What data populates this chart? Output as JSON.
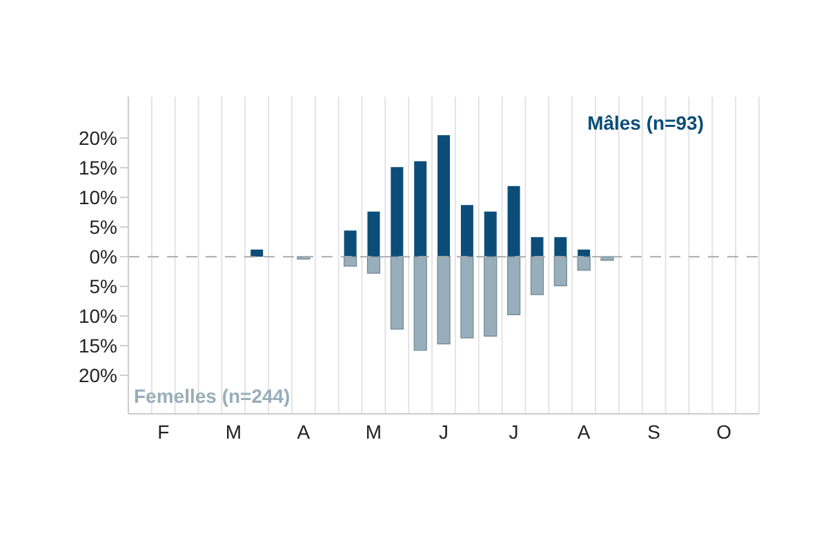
{
  "chart_data": {
    "type": "bar",
    "stacked": true,
    "categories": [
      null,
      "F",
      null,
      null,
      "M",
      null,
      null,
      "A",
      null,
      null,
      "M",
      null,
      null,
      "J",
      null,
      null,
      "J",
      null,
      null,
      "A",
      null,
      null,
      "S",
      null,
      null,
      "O",
      null
    ],
    "series": [
      {
        "name": "Mâles (n=93)",
        "color": "#0b4d78",
        "values": [
          0,
          0,
          0,
          0,
          0,
          1.2,
          0,
          0,
          0,
          4.4,
          7.6,
          15.1,
          16.1,
          20.5,
          8.7,
          7.6,
          11.9,
          3.3,
          3.3,
          1.2,
          0,
          0,
          0,
          0,
          0,
          0,
          0
        ]
      },
      {
        "name": "Femelles (n=244)",
        "color": "#98aebb",
        "values": [
          0,
          0,
          0,
          0,
          0,
          0,
          0,
          -0.4,
          0,
          -1.6,
          -2.8,
          -12.2,
          -15.8,
          -14.7,
          -13.7,
          -13.4,
          -9.8,
          -6.4,
          -4.9,
          -2.3,
          -0.6,
          0,
          0,
          0,
          0,
          0,
          0
        ]
      }
    ],
    "ylim": [
      -26.5,
      27
    ],
    "yticks": [
      {
        "value": 20,
        "label": "20%"
      },
      {
        "value": 15,
        "label": "15%"
      },
      {
        "value": 10,
        "label": "10%"
      },
      {
        "value": 5,
        "label": "5%"
      },
      {
        "value": 0,
        "label": "0%"
      },
      {
        "value": -5,
        "label": "5%"
      },
      {
        "value": -10,
        "label": "10%"
      },
      {
        "value": -15,
        "label": "15%"
      },
      {
        "value": -20,
        "label": "20%"
      }
    ],
    "ref_lines": [
      {
        "axis": "y",
        "value": 0,
        "color": "#aaaaaa",
        "line_style": "dashed"
      }
    ],
    "grid": "x",
    "legend": false
  }
}
